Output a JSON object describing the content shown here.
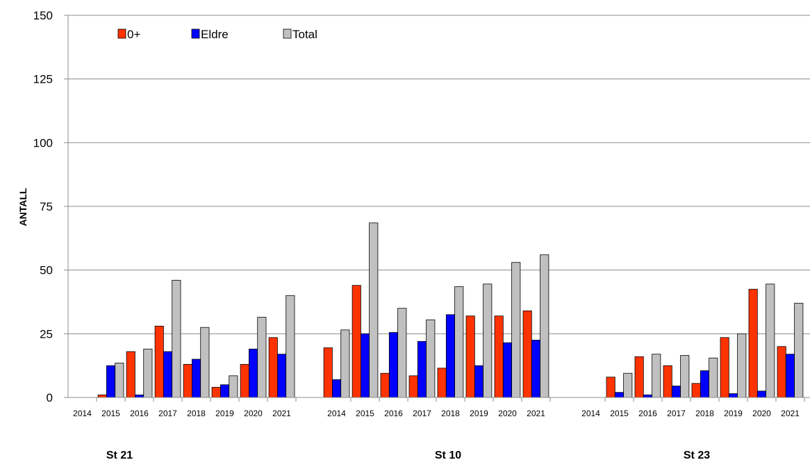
{
  "chart_data": {
    "type": "bar",
    "title": "",
    "ylabel": "ANTALL",
    "xlabel": "",
    "ylim": [
      0,
      150
    ],
    "yticks": [
      0,
      25,
      50,
      75,
      100,
      125,
      150
    ],
    "grid": true,
    "legend_position": "top-left",
    "groups": [
      {
        "label": "St 21",
        "categories": [
          "2014",
          "2015",
          "2016",
          "2017",
          "2018",
          "2019",
          "2020",
          "2021"
        ],
        "series": [
          {
            "name": "0+",
            "values": [
              0,
              1,
              18,
              28,
              13,
              4,
              13,
              23.5
            ]
          },
          {
            "name": "Eldre",
            "values": [
              0,
              12.5,
              1,
              18,
              15,
              5,
              19,
              17
            ]
          },
          {
            "name": "Total",
            "values": [
              0,
              13.5,
              19,
              46,
              27.5,
              8.5,
              31.5,
              40
            ]
          }
        ]
      },
      {
        "label": "St 10",
        "categories": [
          "2014",
          "2015",
          "2016",
          "2017",
          "2018",
          "2019",
          "2020",
          "2021"
        ],
        "series": [
          {
            "name": "0+",
            "values": [
              19.5,
              44,
              9.5,
              8.5,
              11.5,
              32,
              32,
              34
            ]
          },
          {
            "name": "Eldre",
            "values": [
              7,
              25,
              25.5,
              22,
              32.5,
              12.5,
              21.5,
              22.5
            ]
          },
          {
            "name": "Total",
            "values": [
              26.5,
              68.5,
              35,
              30.5,
              43.5,
              44.5,
              53,
              56
            ]
          }
        ]
      },
      {
        "label": "St 23",
        "categories": [
          "2014",
          "2015",
          "2016",
          "2017",
          "2018",
          "2019",
          "2020",
          "2021"
        ],
        "series": [
          {
            "name": "0+",
            "values": [
              0,
              8,
              16,
              12.5,
              5.5,
              23.5,
              42.5,
              20
            ]
          },
          {
            "name": "Eldre",
            "values": [
              0,
              2,
              1,
              4.5,
              10.5,
              1.5,
              2.5,
              17
            ]
          },
          {
            "name": "Total",
            "values": [
              0,
              9.5,
              17,
              16.5,
              15.5,
              25,
              44.5,
              37
            ]
          }
        ]
      }
    ],
    "colors": {
      "0+": "#ff3300",
      "Eldre": "#0000ff",
      "Total": "#c0c0c0"
    }
  }
}
